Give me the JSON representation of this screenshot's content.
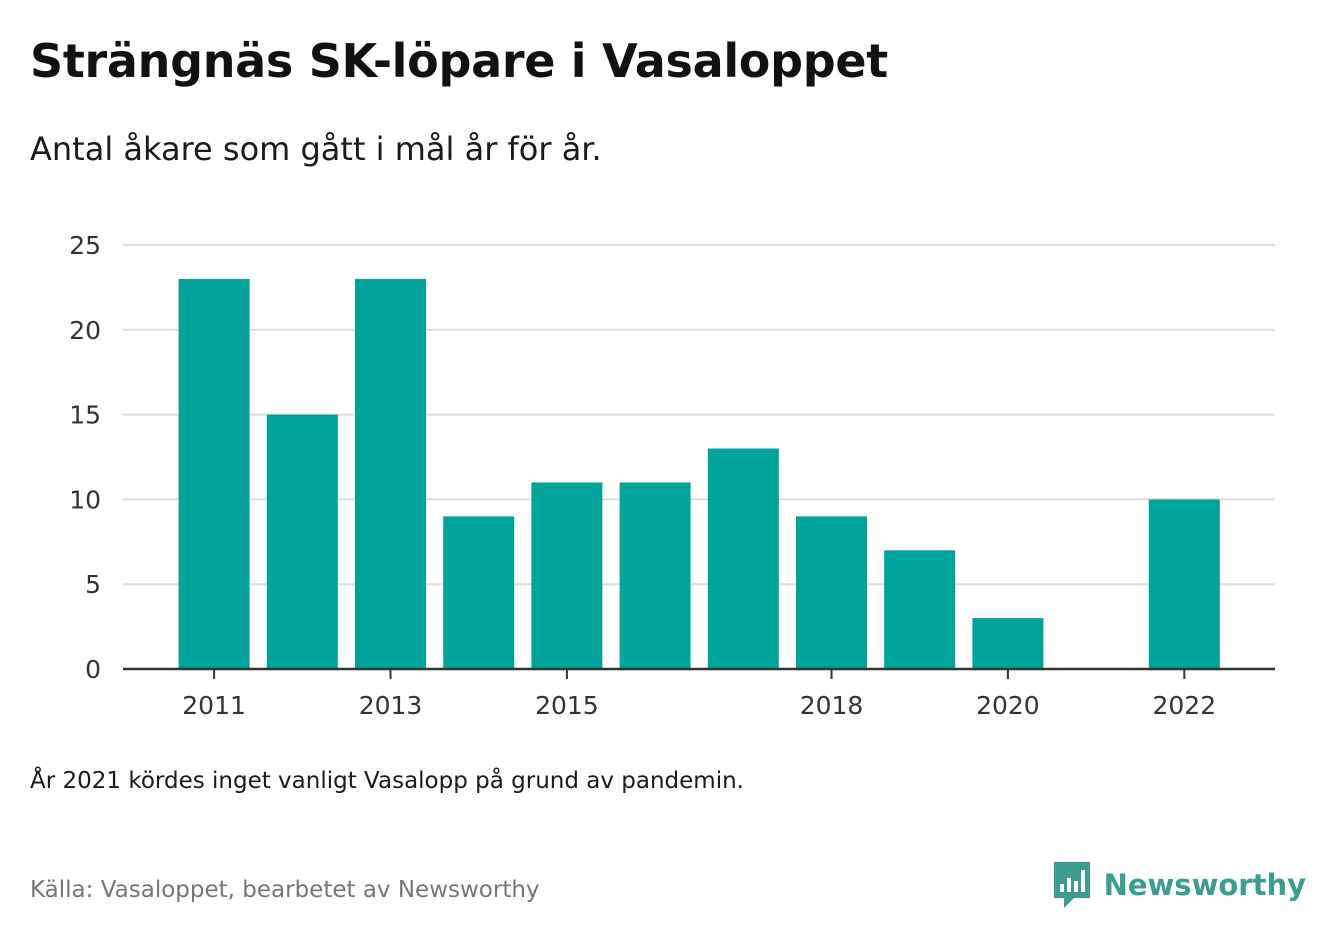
{
  "header": {
    "title": "Strängnäs SK-löpare i Vasaloppet",
    "subtitle": "Antal åkare som gått i mål år för år."
  },
  "footer": {
    "note": "År 2021 kördes inget vanligt Vasalopp på grund av pandemin.",
    "source": "Källa: Vasaloppet, bearbetet av Newsworthy",
    "brand": "Newsworthy",
    "brand_icon": "chart-bubble-icon"
  },
  "colors": {
    "bar": "#00a39a",
    "grid": "#dddddd",
    "axis": "#333333",
    "brand": "#3b9c8f"
  },
  "chart_data": {
    "type": "bar",
    "title": "Strängnäs SK-löpare i Vasaloppet",
    "subtitle": "Antal åkare som gått i mål år för år.",
    "xlabel": "",
    "ylabel": "",
    "categories": [
      "2011",
      "2012",
      "2013",
      "2014",
      "2015",
      "2016",
      "2017",
      "2018",
      "2019",
      "2020",
      "2021",
      "2022"
    ],
    "values": [
      23,
      15,
      23,
      9,
      11,
      11,
      13,
      9,
      7,
      3,
      null,
      10
    ],
    "x_tick_labels": [
      "2011",
      "2013",
      "2015",
      "2018",
      "2020",
      "2022"
    ],
    "y_ticks": [
      0,
      5,
      10,
      15,
      20,
      25
    ],
    "ylim": [
      0,
      25
    ],
    "grid": true,
    "legend": "none"
  }
}
